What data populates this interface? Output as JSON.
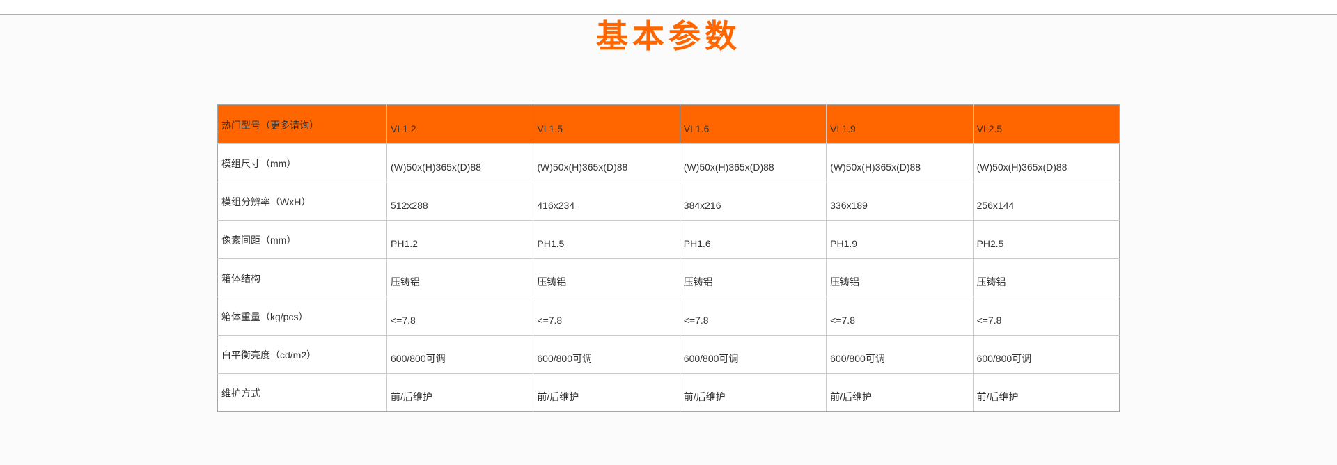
{
  "page": {
    "title": "基本参数",
    "accent_color": "#ff6600",
    "background_color": "#fbfbfb"
  },
  "table": {
    "header": {
      "label": "热门型号（更多请询）",
      "background_color": "#ff6600",
      "models": [
        "VL1.2",
        "VL1.5",
        "VL1.6",
        "VL1.9",
        "VL2.5"
      ]
    },
    "rows": [
      {
        "label": "模组尺寸（mm）",
        "values": [
          "(W)50x(H)365x(D)88",
          "(W)50x(H)365x(D)88",
          "(W)50x(H)365x(D)88",
          "(W)50x(H)365x(D)88",
          "(W)50x(H)365x(D)88"
        ]
      },
      {
        "label": "模组分辨率（WxH）",
        "values": [
          "512x288",
          "416x234",
          "384x216",
          "336x189",
          "256x144"
        ]
      },
      {
        "label": "像素间距（mm）",
        "values": [
          "PH1.2",
          "PH1.5",
          "PH1.6",
          "PH1.9",
          "PH2.5"
        ]
      },
      {
        "label": "箱体结构",
        "values": [
          "压铸铝",
          "压铸铝",
          "压铸铝",
          "压铸铝",
          "压铸铝"
        ]
      },
      {
        "label": "箱体重量（kg/pcs）",
        "values": [
          "<=7.8",
          "<=7.8",
          "<=7.8",
          "<=7.8",
          "<=7.8"
        ]
      },
      {
        "label": "白平衡亮度（cd/m2）",
        "values": [
          "600/800可调",
          "600/800可调",
          "600/800可调",
          "600/800可调",
          "600/800可调"
        ]
      },
      {
        "label": "维护方式",
        "values": [
          "前/后维护",
          "前/后维护",
          "前/后维护",
          "前/后维护",
          "前/后维护"
        ]
      }
    ]
  }
}
